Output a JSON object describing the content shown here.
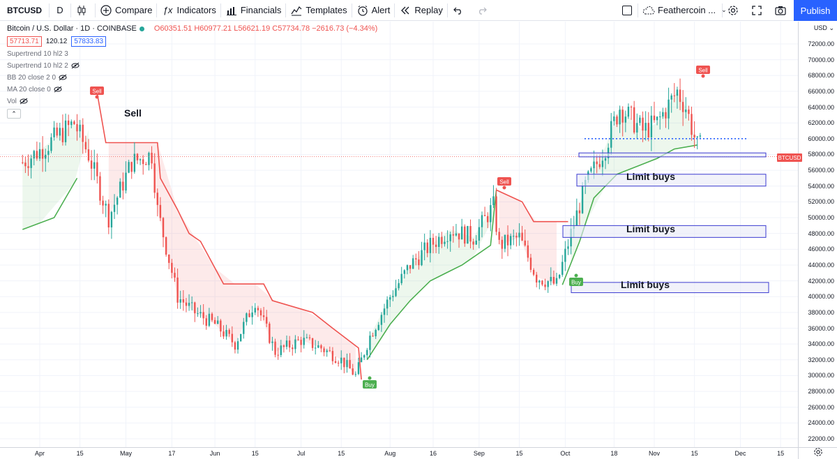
{
  "toolbar": {
    "symbol": "BTCUSD",
    "interval": "D",
    "compare_label": "Compare",
    "indicators_label": "Indicators",
    "financials_label": "Financials",
    "templates_label": "Templates",
    "alert_label": "Alert",
    "replay_label": "Replay",
    "layout_name": "Feathercoin ...",
    "publish_label": "Publish",
    "icons": [
      "add-circle-icon",
      "fx-icon",
      "financials-icon",
      "templates-icon",
      "alert-clock-icon",
      "replay-icon",
      "undo-icon",
      "redo-icon",
      "cloud-icon",
      "settings-gear-icon",
      "fullscreen-icon",
      "camera-icon"
    ]
  },
  "legend": {
    "title": "Bitcoin / U.S. Dollar · 1D · COINBASE",
    "ohlc": "O60351.51 H60977.21 L56621.19 C57734.78 −2616.73 (−4.34%)",
    "bid": "57713.71",
    "spread": "120.12",
    "ask": "57833.83",
    "indicators": [
      "Supertrend 10 hl2 3",
      "Supertrend 10 hl2 2",
      "BB 20 close 2 0",
      "MA 20 close 0",
      "Vol"
    ]
  },
  "price_axis": {
    "currency": "USD",
    "symbol_tag": "BTCUSD",
    "ticks": [
      "72000.00",
      "70000.00",
      "68000.00",
      "66000.00",
      "64000.00",
      "62000.00",
      "60000.00",
      "58000.00",
      "56000.00",
      "54000.00",
      "52000.00",
      "50000.00",
      "48000.00",
      "46000.00",
      "44000.00",
      "42000.00",
      "40000.00",
      "38000.00",
      "36000.00",
      "34000.00",
      "32000.00",
      "30000.00",
      "28000.00",
      "26000.00",
      "24000.00",
      "22000.00"
    ]
  },
  "time_axis": {
    "ticks": [
      "Apr",
      "15",
      "May",
      "17",
      "Jun",
      "15",
      "Jul",
      "15",
      "Aug",
      "16",
      "Sep",
      "15",
      "Oct",
      "18",
      "Nov",
      "15",
      "Dec",
      "15"
    ]
  },
  "annotations": {
    "sell_text": "Sell",
    "signal_sell": "Sell",
    "signal_buy": "Buy",
    "limit_buys": [
      "Limit buys",
      "Limit buys",
      "Limit buys"
    ]
  },
  "colors": {
    "up": "#26a69a",
    "down": "#ef5350",
    "supertrend_up": "#4caf50",
    "supertrend_down": "#ef5350",
    "accent": "#2962ff",
    "box_fill": "#e8eaf6",
    "box_stroke": "#3a3ad0"
  },
  "chart_data": {
    "type": "candlestick",
    "series": [
      {
        "name": "Bitcoin / U.S. Dollar",
        "values_note": "daily OHLC candles"
      },
      {
        "name": "Supertrend 10 hl2 3"
      }
    ],
    "x_range": [
      "Mar 2021",
      "Dec 2021"
    ],
    "ylim": [
      21000,
      73000
    ],
    "supertrend": [
      {
        "date": "2021-03-26",
        "value": 48500
      },
      {
        "date": "2021-04-06",
        "value": 50000
      },
      {
        "date": "2021-04-14",
        "value": 55000
      },
      {
        "date": "2021-04-21",
        "value": 65800
      },
      {
        "date": "2021-04-24",
        "value": 59500
      },
      {
        "date": "2021-05-12",
        "value": 59500
      },
      {
        "date": "2021-05-13",
        "value": 55000
      },
      {
        "date": "2021-05-19",
        "value": 51000
      },
      {
        "date": "2021-05-23",
        "value": 48000
      },
      {
        "date": "2021-05-27",
        "value": 47000
      },
      {
        "date": "2021-06-04",
        "value": 41600
      },
      {
        "date": "2021-06-18",
        "value": 41600
      },
      {
        "date": "2021-06-21",
        "value": 39500
      },
      {
        "date": "2021-07-05",
        "value": 38000
      },
      {
        "date": "2021-07-12",
        "value": 36000
      },
      {
        "date": "2021-07-21",
        "value": 33500
      },
      {
        "date": "2021-07-22",
        "value": 29500
      },
      {
        "date": "2021-07-24",
        "value": 32000
      },
      {
        "date": "2021-08-01",
        "value": 36500
      },
      {
        "date": "2021-08-08",
        "value": 39500
      },
      {
        "date": "2021-08-15",
        "value": 42000
      },
      {
        "date": "2021-08-26",
        "value": 44000
      },
      {
        "date": "2021-09-05",
        "value": 46500
      },
      {
        "date": "2021-09-07",
        "value": 53500
      },
      {
        "date": "2021-09-16",
        "value": 52000
      },
      {
        "date": "2021-09-20",
        "value": 49500
      },
      {
        "date": "2021-10-02",
        "value": 49500
      },
      {
        "date": "2021-09-30",
        "value": 41500
      },
      {
        "date": "2021-10-06",
        "value": 47000
      },
      {
        "date": "2021-10-11",
        "value": 52500
      },
      {
        "date": "2021-10-19",
        "value": 55500
      },
      {
        "date": "2021-10-26",
        "value": 56500
      },
      {
        "date": "2021-11-02",
        "value": 57500
      },
      {
        "date": "2021-11-08",
        "value": 58700
      },
      {
        "date": "2021-11-16",
        "value": 59200
      }
    ],
    "current_price": 57734.78,
    "horizontal_level": 60000,
    "limit_buy_zones": [
      {
        "label": "Limit buys",
        "low": 57700,
        "high": 58200
      },
      {
        "label": "Limit buys",
        "low": 54000,
        "high": 55500
      },
      {
        "label": "Limit buys",
        "low": 47500,
        "high": 49000
      },
      {
        "label": "Limit buys",
        "low": 40500,
        "high": 41800
      }
    ]
  }
}
